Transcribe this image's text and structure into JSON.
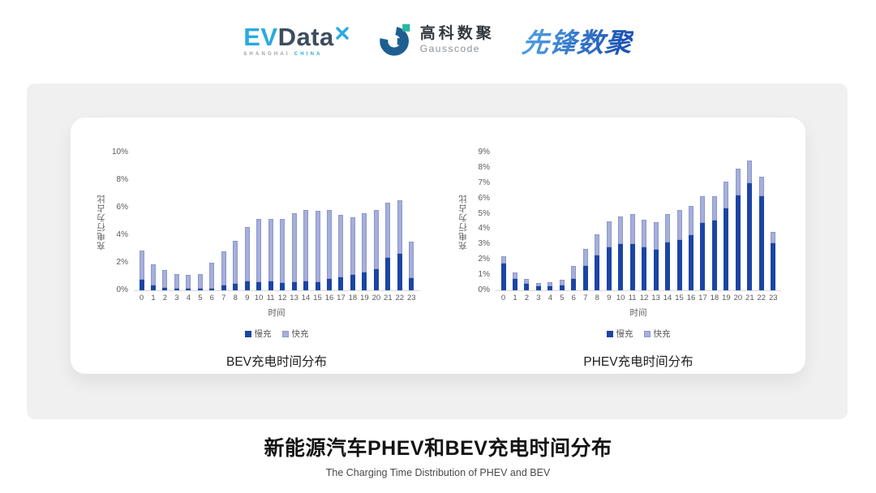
{
  "header": {
    "evdata": {
      "ev": "EV",
      "data": "Data",
      "sub_left": "SHANGHAI ",
      "sub_right": "CHINA"
    },
    "gausscode": {
      "cn": "高科数聚",
      "en": "Gausscode"
    },
    "xianfeng": {
      "text": "先锋数聚"
    }
  },
  "footer": {
    "title": "新能源汽车PHEV和BEV充电时间分布",
    "subtitle": "The Charging Time Distribution of PHEV and BEV"
  },
  "colors": {
    "slow": "#1b45a5",
    "fast": "#a6afda",
    "fast_border": "#8c98cc",
    "evdata_blue": "#29aae1",
    "evdata_dark": "#3d4d5e",
    "gauss_blue": "#1e5f92",
    "gauss_teal": "#2ab5a5",
    "xianfeng_blue": "#2e7fd0"
  },
  "chart_data": [
    {
      "type": "bar",
      "stacked": true,
      "id": "bev",
      "title": "BEV充电时间分布",
      "xlabel": "时间",
      "ylabel": "充电行为占比",
      "unit": "%",
      "ylim": [
        0,
        10
      ],
      "ytick_step": 2,
      "grid": false,
      "legend_position": "bottom",
      "categories": [
        "0",
        "1",
        "2",
        "3",
        "4",
        "5",
        "6",
        "7",
        "8",
        "9",
        "10",
        "11",
        "12",
        "13",
        "14",
        "15",
        "16",
        "17",
        "18",
        "19",
        "20",
        "21",
        "22",
        "23"
      ],
      "series": [
        {
          "name": "慢充",
          "values": [
            0.75,
            0.35,
            0.2,
            0.1,
            0.1,
            0.1,
            0.15,
            0.35,
            0.5,
            0.65,
            0.6,
            0.65,
            0.55,
            0.6,
            0.65,
            0.6,
            0.8,
            0.95,
            1.1,
            1.3,
            1.55,
            2.35,
            2.65,
            0.9
          ]
        },
        {
          "name": "快充",
          "values": [
            2.15,
            1.55,
            1.3,
            1.05,
            1.0,
            1.1,
            1.85,
            2.45,
            3.1,
            3.95,
            4.6,
            4.55,
            4.65,
            5.0,
            5.15,
            5.15,
            5.0,
            4.5,
            4.2,
            4.3,
            4.3,
            4.0,
            3.9,
            2.65
          ]
        }
      ]
    },
    {
      "type": "bar",
      "stacked": true,
      "id": "phev",
      "title": "PHEV充电时间分布",
      "xlabel": "时间",
      "ylabel": "充电行为占比",
      "unit": "%",
      "ylim": [
        0,
        9
      ],
      "ytick_step": 1,
      "grid": false,
      "legend_position": "bottom",
      "categories": [
        "0",
        "1",
        "2",
        "3",
        "4",
        "5",
        "6",
        "7",
        "8",
        "9",
        "10",
        "11",
        "12",
        "13",
        "14",
        "15",
        "16",
        "17",
        "18",
        "19",
        "20",
        "21",
        "22",
        "23"
      ],
      "series": [
        {
          "name": "慢充",
          "values": [
            1.75,
            0.75,
            0.45,
            0.25,
            0.25,
            0.3,
            0.75,
            1.6,
            2.3,
            2.8,
            3.0,
            3.0,
            2.8,
            2.65,
            3.1,
            3.3,
            3.6,
            4.4,
            4.55,
            5.35,
            6.2,
            7.0,
            6.15,
            3.05
          ]
        },
        {
          "name": "快充",
          "values": [
            0.45,
            0.4,
            0.3,
            0.25,
            0.3,
            0.4,
            0.85,
            1.1,
            1.35,
            1.7,
            1.8,
            2.0,
            1.8,
            1.8,
            1.9,
            1.95,
            1.9,
            1.75,
            1.6,
            1.75,
            1.75,
            1.45,
            1.25,
            0.75
          ]
        }
      ]
    }
  ]
}
